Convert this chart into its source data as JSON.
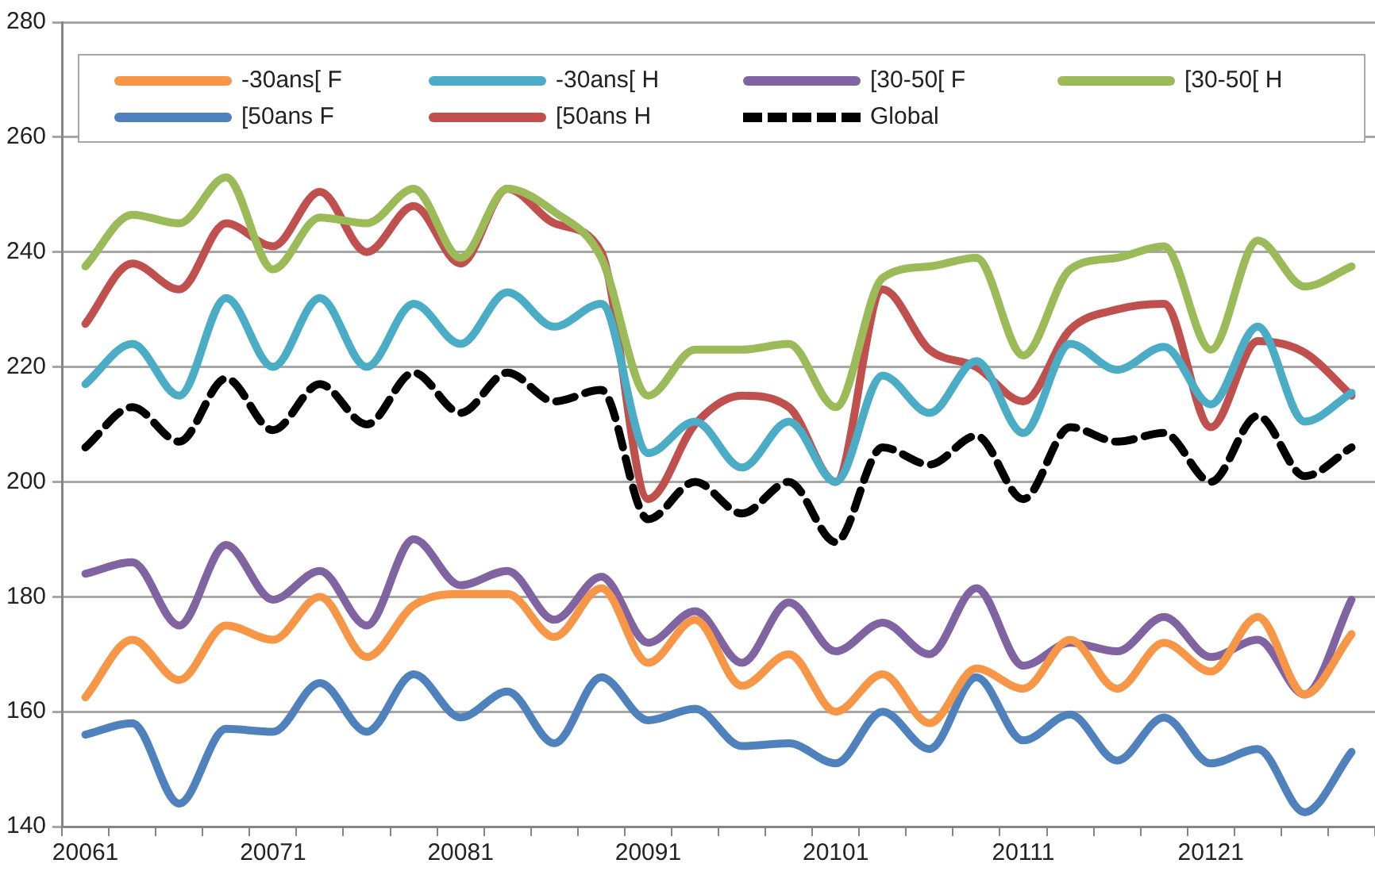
{
  "chart_data": {
    "type": "line",
    "categories": [
      "20061",
      null,
      null,
      null,
      "20071",
      null,
      null,
      null,
      "20081",
      null,
      null,
      null,
      "20091",
      null,
      null,
      null,
      "20101",
      null,
      null,
      null,
      "20111",
      null,
      null,
      null,
      "20121",
      null,
      null,
      null
    ],
    "series": [
      {
        "name": "-30ans[ F",
        "color": "#f79646",
        "values": [
          162.5,
          172.5,
          165.5,
          175,
          172.5,
          180,
          169.5,
          178.5,
          180.5,
          180.5,
          173,
          181.5,
          168.5,
          176,
          164.5,
          170,
          160,
          166.5,
          158,
          167.5,
          164,
          172.5,
          164,
          172,
          167,
          176.5,
          163,
          173.5
        ]
      },
      {
        "name": "-30ans[ H",
        "color": "#4bacc6",
        "values": [
          217,
          224,
          215,
          232,
          220,
          232,
          220,
          231,
          224,
          233,
          227,
          231,
          205,
          210.5,
          202.5,
          210.5,
          200,
          218.5,
          212,
          221,
          208.5,
          224,
          219.5,
          223.5,
          213.5,
          227,
          210.5,
          215.5
        ]
      },
      {
        "name": "[30-50[ F",
        "color": "#8064a2",
        "values": [
          184,
          186,
          175,
          189,
          179.5,
          184.5,
          175,
          190,
          182,
          184.5,
          176,
          183.5,
          172,
          177.5,
          168.5,
          179,
          170.5,
          175.5,
          170,
          181.5,
          168,
          172,
          170.5,
          176.5,
          169.5,
          172.5,
          163,
          179.5
        ]
      },
      {
        "name": "[30-50[ H",
        "color": "#9bbb59",
        "values": [
          237.5,
          246.5,
          245,
          253,
          237,
          246,
          245,
          251,
          239,
          251,
          247,
          239,
          215,
          223,
          223,
          224,
          213,
          235.5,
          237.5,
          239,
          222,
          237,
          239,
          241,
          223,
          242,
          234,
          237.5
        ]
      },
      {
        "name": "[50ans F",
        "color": "#4f81bd",
        "values": [
          156,
          158,
          144,
          157,
          156.5,
          165,
          156.5,
          166.5,
          159,
          163.5,
          154.5,
          166,
          158.5,
          160.5,
          154,
          154.5,
          151,
          160,
          153.5,
          166,
          155,
          159.5,
          151.5,
          159,
          151,
          153.5,
          142.5,
          153
        ]
      },
      {
        "name": "[50ans H",
        "color": "#c0504d",
        "values": [
          227.5,
          238,
          233.5,
          245,
          241,
          250.5,
          240,
          248,
          238,
          251,
          245,
          240,
          197,
          210,
          215,
          213,
          200,
          233.5,
          223,
          220,
          214,
          226.5,
          230,
          231,
          209.5,
          224.5,
          222.5,
          215
        ]
      },
      {
        "name": "Global",
        "color": "#000000",
        "line_style": "dashed",
        "values": [
          206,
          213,
          207,
          218,
          209,
          217,
          210,
          219,
          212,
          219,
          214,
          216,
          193.5,
          200,
          194.5,
          200,
          189.5,
          206,
          203,
          208,
          197,
          209.5,
          207,
          208.5,
          200,
          211.5,
          201,
          206
        ]
      }
    ],
    "ylim": [
      140,
      280
    ],
    "yticks": [
      140,
      160,
      180,
      200,
      220,
      240,
      260,
      280
    ],
    "grid": "y",
    "legend": "top",
    "marker": "none",
    "line_style": "solid"
  }
}
